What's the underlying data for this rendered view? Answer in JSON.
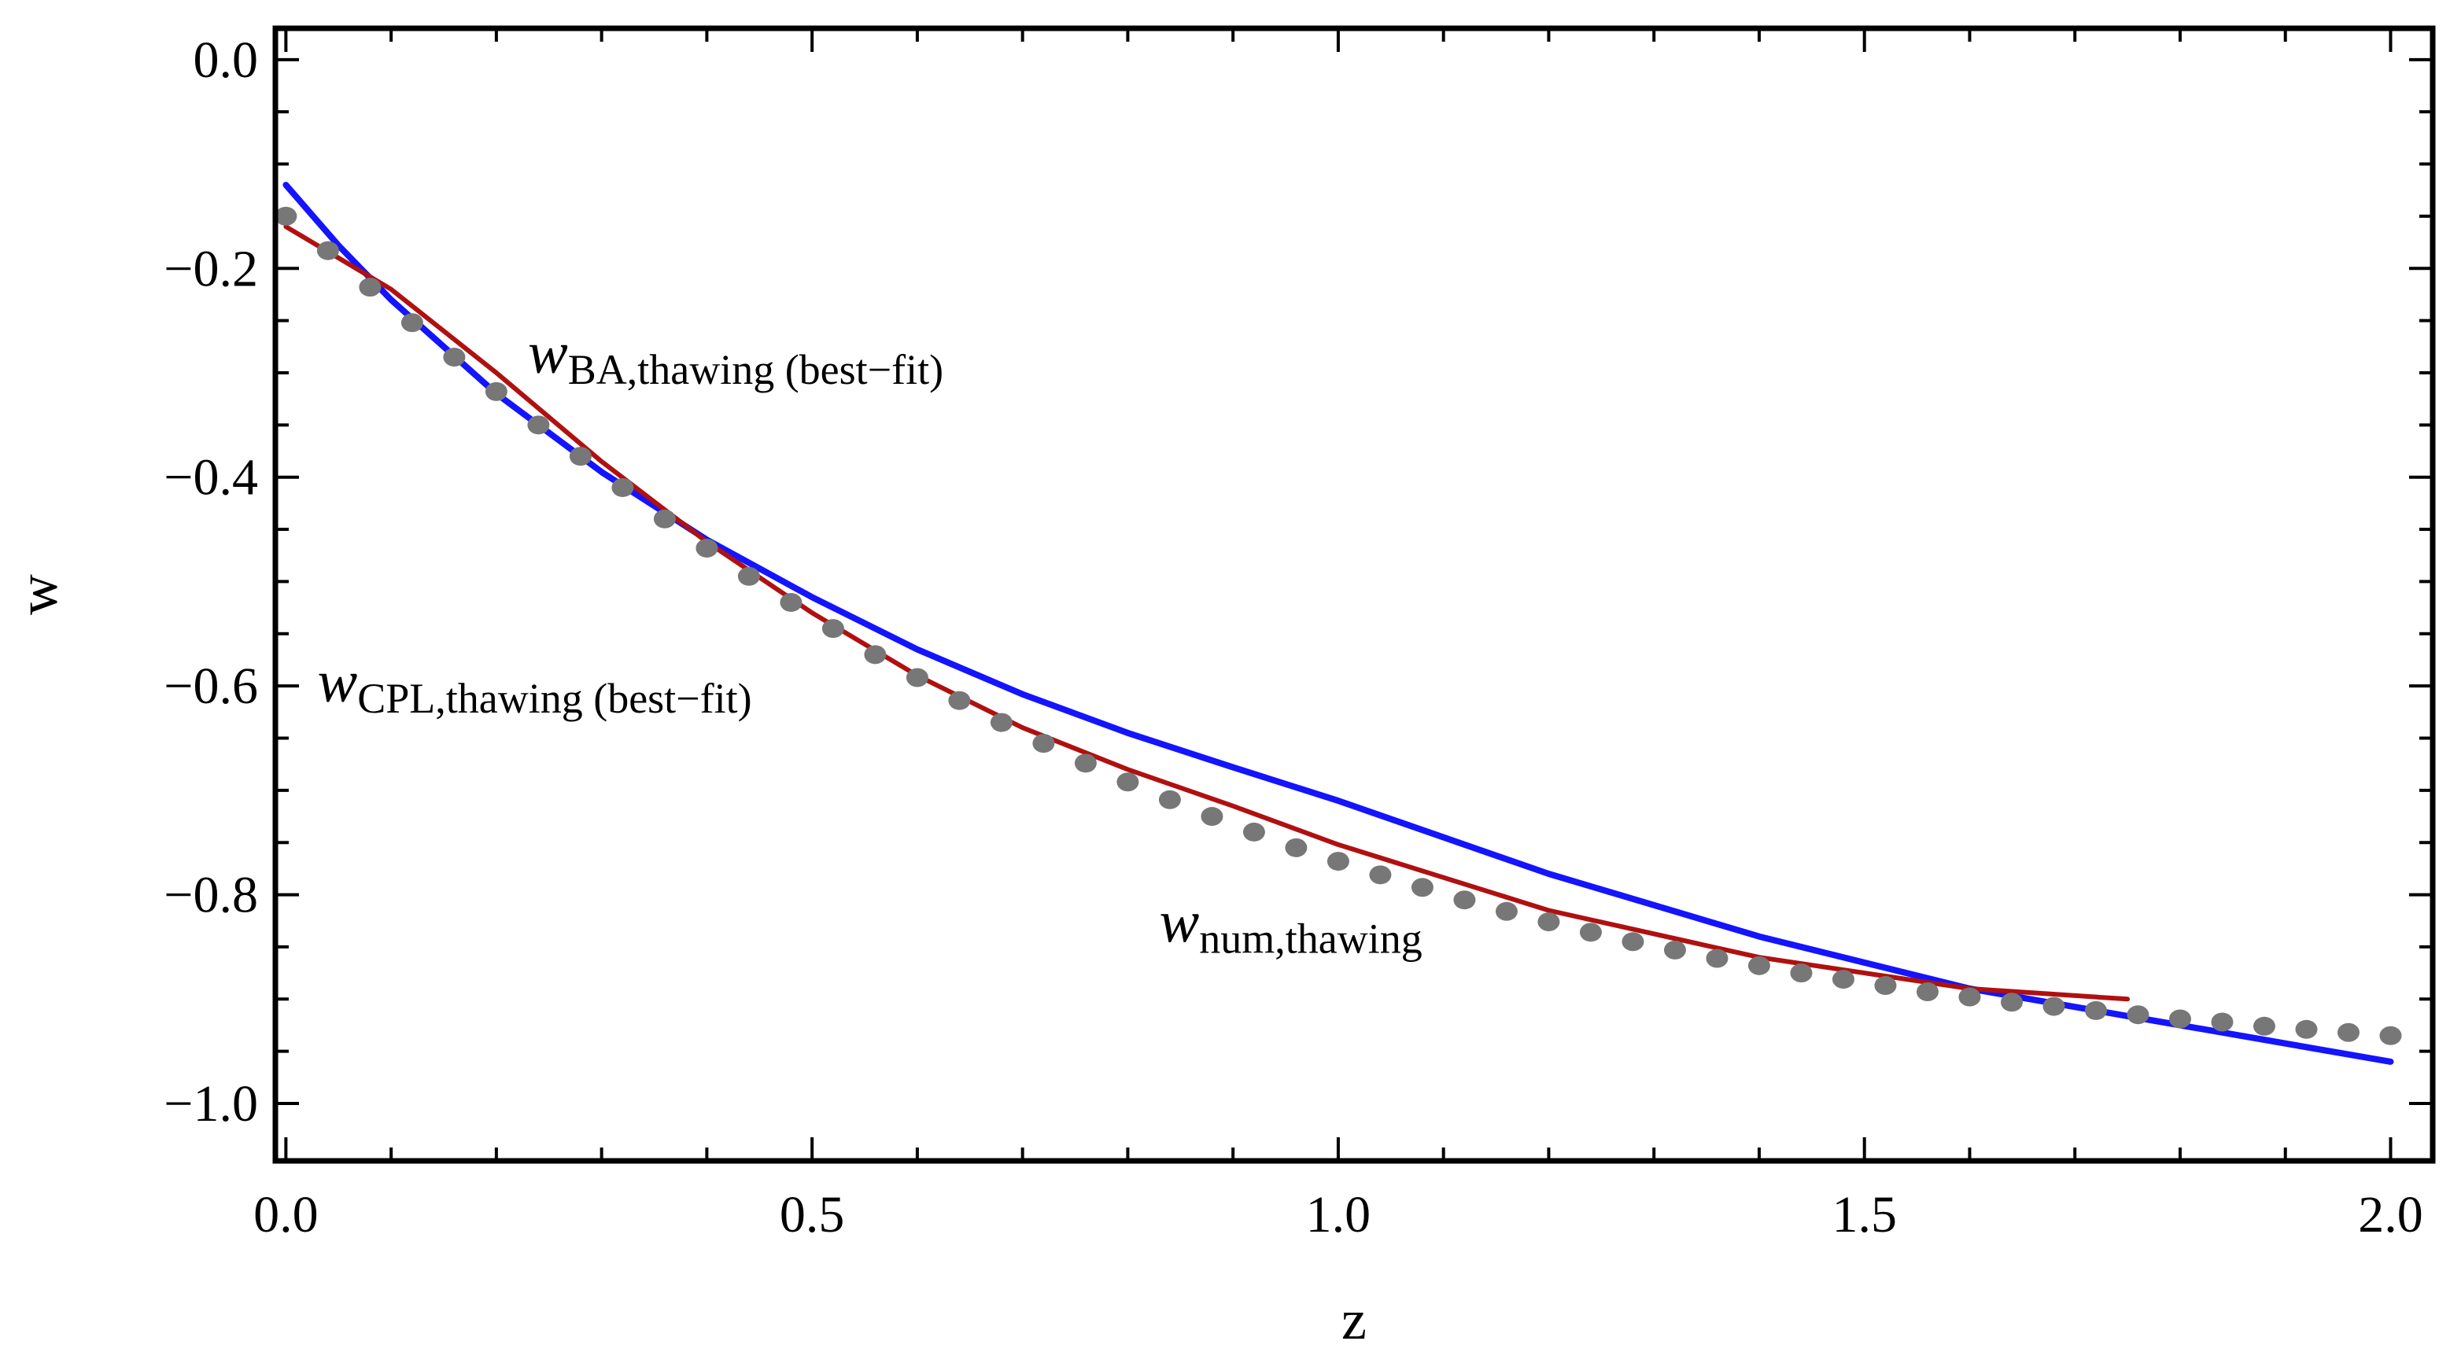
{
  "chart_data": {
    "type": "line",
    "title": "",
    "xlabel": "z",
    "ylabel": "w",
    "xlim": [
      -0.01,
      2.04
    ],
    "ylim": [
      -1.055,
      0.03
    ],
    "xticks": [
      {
        "value": 0.0,
        "label": "0.0"
      },
      {
        "value": 0.5,
        "label": "0.5"
      },
      {
        "value": 1.0,
        "label": "1.0"
      },
      {
        "value": 1.5,
        "label": "1.5"
      },
      {
        "value": 2.0,
        "label": "2.0"
      }
    ],
    "yticks": [
      {
        "value": 0.0,
        "label": "0.0"
      },
      {
        "value": -0.2,
        "label": "−0.2"
      },
      {
        "value": -0.4,
        "label": "−0.4"
      },
      {
        "value": -0.6,
        "label": "−0.6"
      },
      {
        "value": -0.8,
        "label": "−0.8"
      },
      {
        "value": -1.0,
        "label": "−1.0"
      }
    ],
    "x_minor_step": 0.1,
    "y_minor_step": 0.05,
    "grid": false,
    "series": [
      {
        "key": "cpl",
        "style": "line",
        "color": "#1414ff",
        "x": [
          0.0,
          0.05,
          0.1,
          0.2,
          0.3,
          0.4,
          0.5,
          0.6,
          0.7,
          0.8,
          0.9,
          1.0,
          1.2,
          1.4,
          1.6,
          1.8,
          2.0
        ],
        "values": [
          -0.12,
          -0.178,
          -0.23,
          -0.32,
          -0.395,
          -0.46,
          -0.515,
          -0.565,
          -0.608,
          -0.645,
          -0.678,
          -0.71,
          -0.78,
          -0.84,
          -0.89,
          -0.925,
          -0.96
        ]
      },
      {
        "key": "ba",
        "style": "line",
        "color": "#b01010",
        "x": [
          0.0,
          0.05,
          0.1,
          0.2,
          0.3,
          0.4,
          0.5,
          0.6,
          0.7,
          0.8,
          0.9,
          1.0,
          1.2,
          1.4,
          1.6,
          1.75
        ],
        "values": [
          -0.16,
          -0.19,
          -0.22,
          -0.3,
          -0.385,
          -0.462,
          -0.53,
          -0.59,
          -0.64,
          -0.68,
          -0.715,
          -0.752,
          -0.815,
          -0.86,
          -0.89,
          -0.9
        ]
      },
      {
        "key": "num",
        "style": "points",
        "color": "#777777",
        "x": [
          0.0,
          0.04,
          0.08,
          0.12,
          0.16,
          0.2,
          0.24,
          0.28,
          0.32,
          0.36,
          0.4,
          0.44,
          0.48,
          0.52,
          0.56,
          0.6,
          0.64,
          0.68,
          0.72,
          0.76,
          0.8,
          0.84,
          0.88,
          0.92,
          0.96,
          1.0,
          1.04,
          1.08,
          1.12,
          1.16,
          1.2,
          1.24,
          1.28,
          1.32,
          1.36,
          1.4,
          1.44,
          1.48,
          1.52,
          1.56,
          1.6,
          1.64,
          1.68,
          1.72,
          1.76,
          1.8,
          1.84,
          1.88,
          1.92,
          1.96,
          2.0
        ],
        "values": [
          -0.15,
          -0.183,
          -0.218,
          -0.252,
          -0.285,
          -0.318,
          -0.35,
          -0.38,
          -0.41,
          -0.44,
          -0.468,
          -0.495,
          -0.52,
          -0.545,
          -0.57,
          -0.592,
          -0.614,
          -0.635,
          -0.655,
          -0.674,
          -0.692,
          -0.709,
          -0.725,
          -0.74,
          -0.755,
          -0.768,
          -0.781,
          -0.793,
          -0.805,
          -0.816,
          -0.826,
          -0.836,
          -0.845,
          -0.853,
          -0.861,
          -0.868,
          -0.875,
          -0.881,
          -0.887,
          -0.893,
          -0.898,
          -0.903,
          -0.907,
          -0.911,
          -0.915,
          -0.919,
          -0.922,
          -0.926,
          -0.929,
          -0.932,
          -0.935
        ]
      }
    ],
    "annotations": [
      {
        "key": "ba",
        "main": "w",
        "sub": "BA,thawing (best−fit)",
        "x": 0.23,
        "y": -0.3
      },
      {
        "key": "cpl",
        "main": "w",
        "sub": "CPL,thawing (best−fit)",
        "x": 0.03,
        "y": -0.615
      },
      {
        "key": "num",
        "main": "w",
        "sub": "num,thawing",
        "x": 0.83,
        "y": -0.845
      }
    ]
  }
}
